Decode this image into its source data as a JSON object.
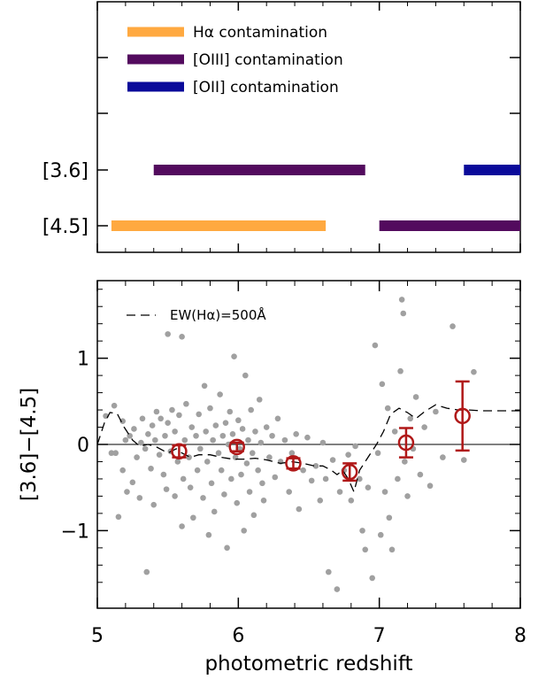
{
  "chart_data": [
    {
      "type": "bar",
      "title": "",
      "xlim": [
        5,
        8
      ],
      "categories": [
        "[3.6]",
        "[4.5]"
      ],
      "legend": {
        "placement": "top-left",
        "entries": [
          {
            "label": "Hα contamination",
            "color": "#ffa940"
          },
          {
            "label": "[OIII] contamination",
            "color": "#530b5e"
          },
          {
            "label": "[OII] contamination",
            "color": "#0a0a9a"
          }
        ]
      },
      "series": [
        {
          "band": "[3.6]",
          "line": "[OIII]",
          "color": "#530b5e",
          "z_start": 5.4,
          "z_end": 6.9
        },
        {
          "band": "[3.6]",
          "line": "[OII]",
          "color": "#0a0a9a",
          "z_start": 7.6,
          "z_end": 8.0
        },
        {
          "band": "[4.5]",
          "line": "Hα",
          "color": "#ffa940",
          "z_start": 5.1,
          "z_end": 6.62
        },
        {
          "band": "[4.5]",
          "line": "[OIII]",
          "color": "#530b5e",
          "z_start": 7.0,
          "z_end": 8.0
        }
      ]
    },
    {
      "type": "scatter",
      "title": "",
      "xlabel": "photometric redshift",
      "ylabel": "[3.6]−[4.5]",
      "xlim": [
        5,
        8
      ],
      "ylim": [
        -1.9,
        1.9
      ],
      "x_ticks": [
        "5",
        "6",
        "7",
        "8"
      ],
      "y_ticks": [
        "−1",
        "0",
        "1"
      ],
      "grid": false,
      "zero_line": 0,
      "annotation": "EW(Hα)=500Å",
      "colors": {
        "points": "#a0a0a0",
        "binned": "#b01818",
        "model": "#000000"
      },
      "points": [
        [
          5.06,
          0.33
        ],
        [
          5.1,
          -0.1
        ],
        [
          5.12,
          0.45
        ],
        [
          5.13,
          -0.1
        ],
        [
          5.15,
          -0.84
        ],
        [
          5.18,
          0.27
        ],
        [
          5.18,
          -0.3
        ],
        [
          5.2,
          0.05
        ],
        [
          5.21,
          -0.55
        ],
        [
          5.23,
          0.1
        ],
        [
          5.25,
          -0.44
        ],
        [
          5.26,
          0.18
        ],
        [
          5.28,
          -0.15
        ],
        [
          5.3,
          -0.62
        ],
        [
          5.31,
          0.02
        ],
        [
          5.32,
          0.3
        ],
        [
          5.34,
          -0.05
        ],
        [
          5.35,
          -1.48
        ],
        [
          5.36,
          0.12
        ],
        [
          5.38,
          -0.28
        ],
        [
          5.39,
          0.22
        ],
        [
          5.4,
          -0.7
        ],
        [
          5.41,
          0.05
        ],
        [
          5.42,
          0.38
        ],
        [
          5.44,
          -0.12
        ],
        [
          5.45,
          0.3
        ],
        [
          5.47,
          -0.35
        ],
        [
          5.48,
          0.1
        ],
        [
          5.49,
          -0.52
        ],
        [
          5.5,
          0.25
        ],
        [
          5.5,
          1.28
        ],
        [
          5.52,
          -0.08
        ],
        [
          5.53,
          0.4
        ],
        [
          5.55,
          -0.6
        ],
        [
          5.55,
          0.15
        ],
        [
          5.57,
          -0.2
        ],
        [
          5.58,
          0.34
        ],
        [
          5.6,
          -0.95
        ],
        [
          5.6,
          1.25
        ],
        [
          5.61,
          -0.4
        ],
        [
          5.62,
          0.05
        ],
        [
          5.63,
          0.47
        ],
        [
          5.65,
          -0.15
        ],
        [
          5.66,
          -0.5
        ],
        [
          5.67,
          0.2
        ],
        [
          5.68,
          -0.85
        ],
        [
          5.7,
          0.1
        ],
        [
          5.71,
          -0.3
        ],
        [
          5.72,
          0.35
        ],
        [
          5.73,
          -0.05
        ],
        [
          5.75,
          -0.62
        ],
        [
          5.76,
          0.68
        ],
        [
          5.77,
          0.15
        ],
        [
          5.78,
          -0.2
        ],
        [
          5.79,
          -1.05
        ],
        [
          5.8,
          0.42
        ],
        [
          5.81,
          -0.45
        ],
        [
          5.82,
          0.05
        ],
        [
          5.83,
          -0.78
        ],
        [
          5.84,
          0.22
        ],
        [
          5.86,
          -0.1
        ],
        [
          5.87,
          0.58
        ],
        [
          5.88,
          -0.3
        ],
        [
          5.89,
          0.1
        ],
        [
          5.9,
          -0.58
        ],
        [
          5.91,
          0.25
        ],
        [
          5.92,
          -1.2
        ],
        [
          5.93,
          0.0
        ],
        [
          5.94,
          0.38
        ],
        [
          5.95,
          -0.4
        ],
        [
          5.96,
          0.12
        ],
        [
          5.97,
          1.02
        ],
        [
          5.98,
          -0.15
        ],
        [
          5.99,
          -0.68
        ],
        [
          6.0,
          0.28
        ],
        [
          6.01,
          -0.05
        ],
        [
          6.02,
          -0.35
        ],
        [
          6.03,
          0.18
        ],
        [
          6.04,
          -1.0
        ],
        [
          6.05,
          0.8
        ],
        [
          6.06,
          -0.22
        ],
        [
          6.07,
          0.05
        ],
        [
          6.08,
          -0.55
        ],
        [
          6.09,
          0.4
        ],
        [
          6.1,
          -0.1
        ],
        [
          6.11,
          -0.82
        ],
        [
          6.12,
          0.15
        ],
        [
          6.14,
          -0.3
        ],
        [
          6.15,
          0.52
        ],
        [
          6.16,
          0.02
        ],
        [
          6.17,
          -0.45
        ],
        [
          6.18,
          -0.65
        ],
        [
          6.2,
          0.2
        ],
        [
          6.22,
          -0.15
        ],
        [
          6.24,
          0.1
        ],
        [
          6.26,
          -0.38
        ],
        [
          6.28,
          0.3
        ],
        [
          6.3,
          -0.2
        ],
        [
          6.33,
          0.05
        ],
        [
          6.36,
          -0.55
        ],
        [
          6.38,
          -0.1
        ],
        [
          6.41,
          0.12
        ],
        [
          6.43,
          -0.75
        ],
        [
          6.46,
          -0.3
        ],
        [
          6.49,
          0.08
        ],
        [
          6.52,
          -0.42
        ],
        [
          6.55,
          -0.25
        ],
        [
          6.58,
          -0.65
        ],
        [
          6.6,
          0.02
        ],
        [
          6.62,
          -0.4
        ],
        [
          6.64,
          -1.48
        ],
        [
          6.67,
          -0.18
        ],
        [
          6.7,
          -1.68
        ],
        [
          6.72,
          -0.55
        ],
        [
          6.75,
          -0.3
        ],
        [
          6.78,
          -0.12
        ],
        [
          6.8,
          -0.65
        ],
        [
          6.83,
          -0.02
        ],
        [
          6.86,
          -0.4
        ],
        [
          6.88,
          -1.0
        ],
        [
          6.9,
          -1.22
        ],
        [
          6.92,
          -0.5
        ],
        [
          6.95,
          -1.55
        ],
        [
          6.97,
          1.15
        ],
        [
          6.99,
          -0.1
        ],
        [
          7.01,
          -1.05
        ],
        [
          7.02,
          0.7
        ],
        [
          7.04,
          -0.55
        ],
        [
          7.06,
          0.42
        ],
        [
          7.07,
          -0.85
        ],
        [
          7.09,
          -1.22
        ],
        [
          7.11,
          0.15
        ],
        [
          7.13,
          -0.4
        ],
        [
          7.15,
          0.85
        ],
        [
          7.16,
          1.68
        ],
        [
          7.17,
          1.52
        ],
        [
          7.18,
          -0.2
        ],
        [
          7.2,
          -0.6
        ],
        [
          7.22,
          0.3
        ],
        [
          7.24,
          -0.05
        ],
        [
          7.26,
          0.55
        ],
        [
          7.29,
          -0.35
        ],
        [
          7.32,
          0.2
        ],
        [
          7.36,
          -0.48
        ],
        [
          7.4,
          0.38
        ],
        [
          7.45,
          -0.15
        ],
        [
          7.52,
          1.37
        ],
        [
          7.6,
          -0.18
        ],
        [
          7.67,
          0.84
        ]
      ],
      "binned": [
        {
          "x": 5.58,
          "y": -0.08,
          "yerr": 0.07
        },
        {
          "x": 5.99,
          "y": -0.03,
          "yerr": 0.05
        },
        {
          "x": 6.39,
          "y": -0.22,
          "yerr": 0.06
        },
        {
          "x": 6.79,
          "y": -0.32,
          "yerr": 0.1
        },
        {
          "x": 7.19,
          "y": 0.02,
          "yerr": 0.17
        },
        {
          "x": 7.59,
          "y": 0.33,
          "yerr": 0.4
        }
      ],
      "model_curve": [
        [
          5.0,
          0.0
        ],
        [
          5.05,
          0.25
        ],
        [
          5.09,
          0.37
        ],
        [
          5.14,
          0.36
        ],
        [
          5.19,
          0.2
        ],
        [
          5.25,
          0.05
        ],
        [
          5.3,
          -0.02
        ],
        [
          5.36,
          0.0
        ],
        [
          5.42,
          -0.03
        ],
        [
          5.5,
          -0.1
        ],
        [
          5.56,
          -0.05
        ],
        [
          5.6,
          -0.1
        ],
        [
          5.66,
          -0.15
        ],
        [
          5.72,
          -0.12
        ],
        [
          5.8,
          -0.12
        ],
        [
          5.88,
          -0.15
        ],
        [
          5.96,
          -0.17
        ],
        [
          6.04,
          -0.17
        ],
        [
          6.12,
          -0.16
        ],
        [
          6.2,
          -0.18
        ],
        [
          6.3,
          -0.22
        ],
        [
          6.38,
          -0.2
        ],
        [
          6.46,
          -0.22
        ],
        [
          6.54,
          -0.25
        ],
        [
          6.6,
          -0.25
        ],
        [
          6.66,
          -0.3
        ],
        [
          6.7,
          -0.35
        ],
        [
          6.74,
          -0.3
        ],
        [
          6.78,
          -0.4
        ],
        [
          6.82,
          -0.55
        ],
        [
          6.86,
          -0.3
        ],
        [
          6.9,
          -0.2
        ],
        [
          6.94,
          -0.1
        ],
        [
          6.98,
          0.0
        ],
        [
          7.03,
          0.15
        ],
        [
          7.08,
          0.35
        ],
        [
          7.14,
          0.42
        ],
        [
          7.2,
          0.37
        ],
        [
          7.26,
          0.3
        ],
        [
          7.32,
          0.38
        ],
        [
          7.4,
          0.46
        ],
        [
          7.48,
          0.42
        ],
        [
          7.56,
          0.4
        ],
        [
          7.64,
          0.4
        ],
        [
          7.72,
          0.39
        ],
        [
          7.8,
          0.39
        ],
        [
          7.9,
          0.39
        ],
        [
          8.0,
          0.39
        ]
      ]
    }
  ]
}
